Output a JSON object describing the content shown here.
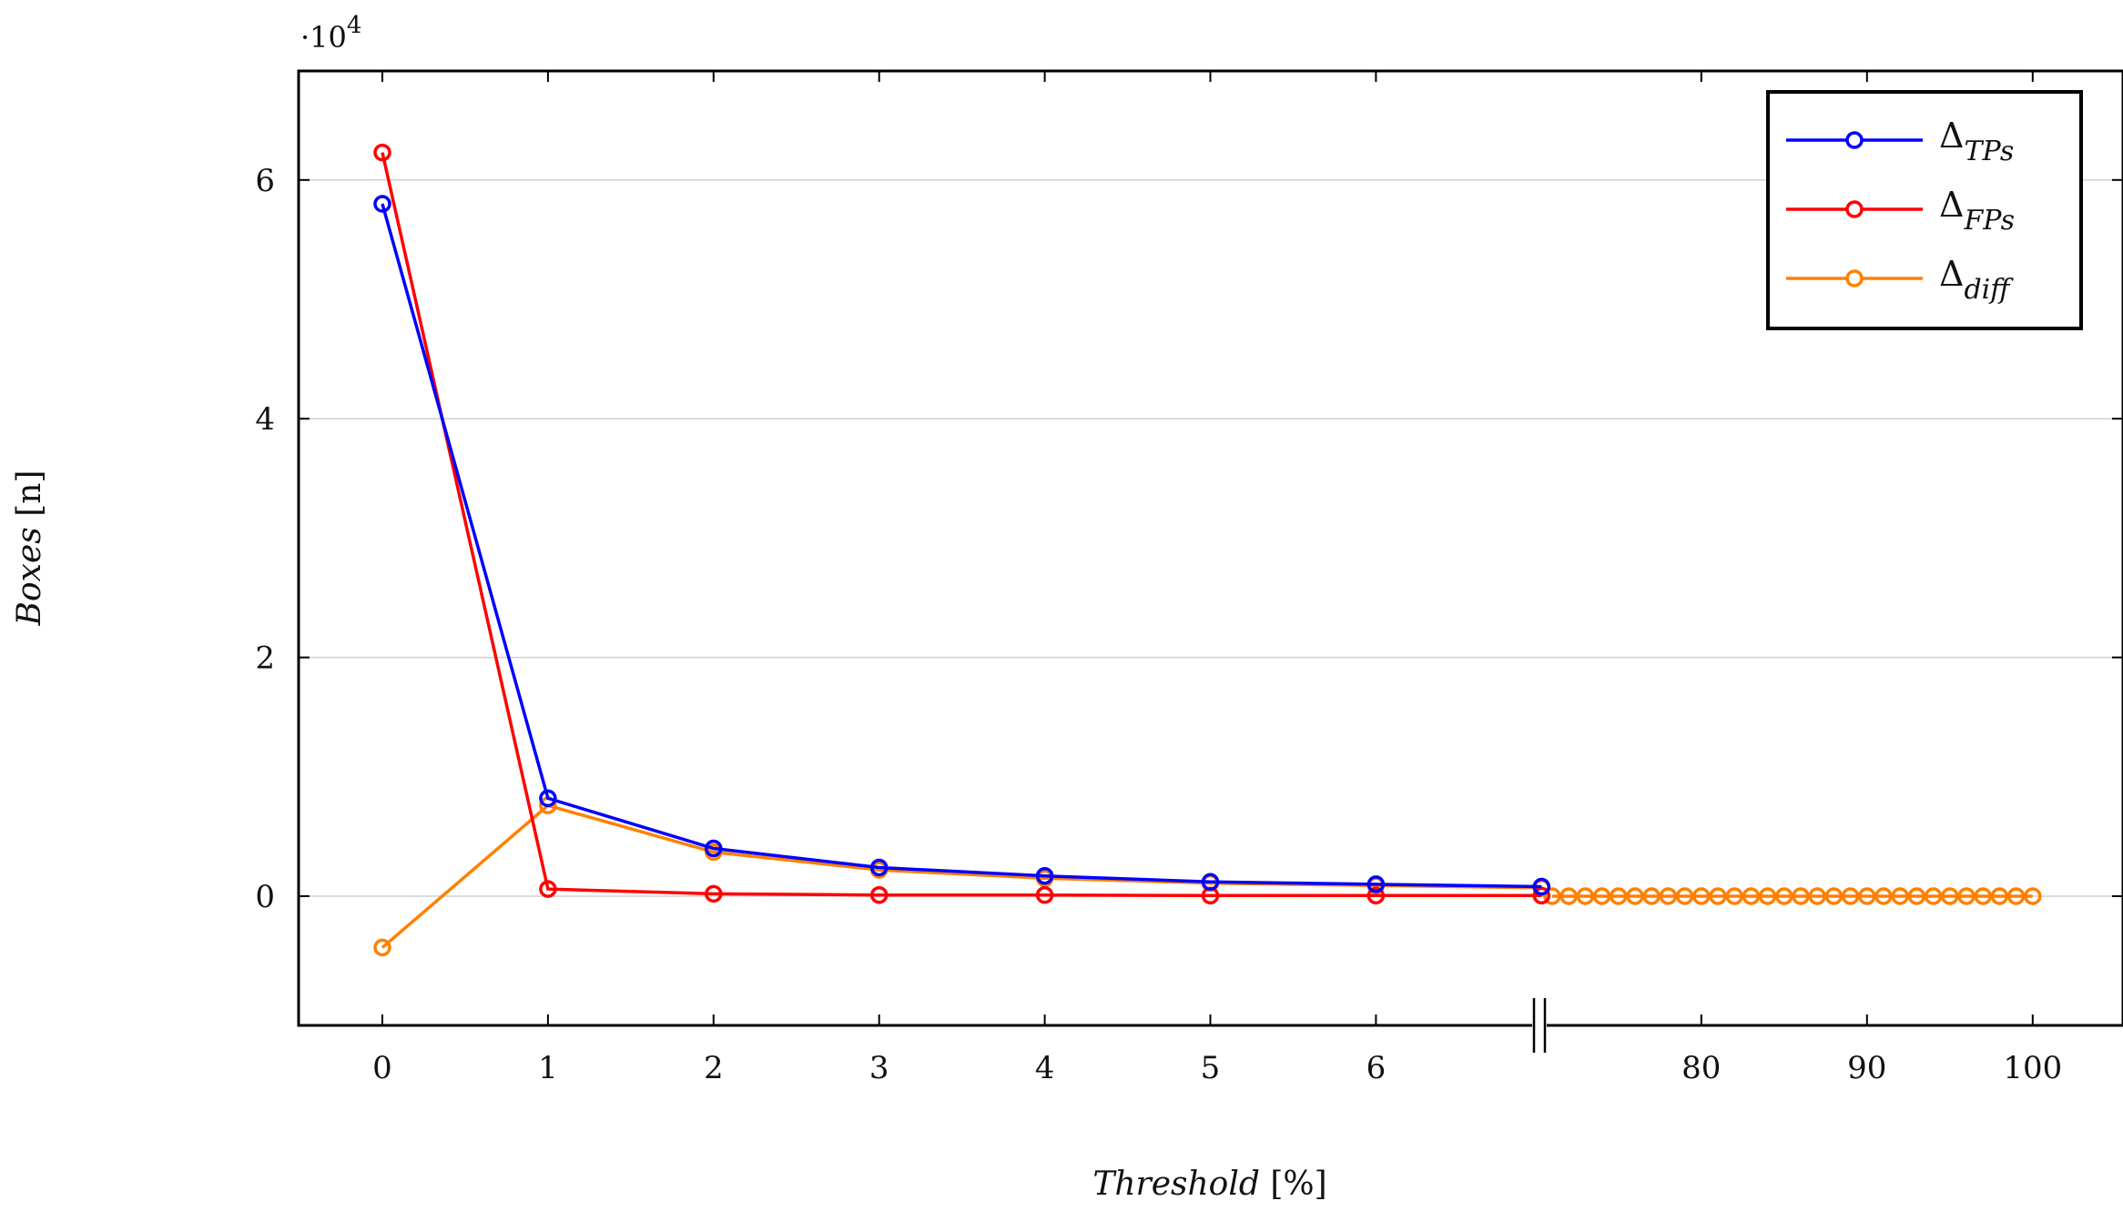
{
  "chart_data": {
    "type": "line",
    "xlabel": "Threshold",
    "xlabel_unit": "[%]",
    "ylabel": "Boxes",
    "ylabel_unit": "[n]",
    "y_multiplier_base": "·10",
    "y_multiplier_exp": "4",
    "ylim": [
      -1.1,
      6.9
    ],
    "y_ticks": [
      0,
      2,
      4,
      6
    ],
    "y_tick_labels": [
      "0",
      "2",
      "4",
      "6"
    ],
    "x_ticks_left": [
      0,
      1,
      2,
      3,
      4,
      5,
      6
    ],
    "x_ticks_right": [
      80,
      90,
      100
    ],
    "x_tick_labels_left": [
      "0",
      "1",
      "2",
      "3",
      "4",
      "5",
      "6"
    ],
    "x_tick_labels_right": [
      "80",
      "90",
      "100"
    ],
    "axis_break": true,
    "grid": "horizontal",
    "legend_position": "top-right",
    "series": [
      {
        "name": "TPs",
        "color": "#0000ff",
        "x": [
          0,
          1,
          2,
          3,
          4,
          5,
          6,
          7
        ],
        "values": [
          5.8,
          0.82,
          0.4,
          0.24,
          0.17,
          0.12,
          0.1,
          0.08
        ]
      },
      {
        "name": "FPs",
        "color": "#ff0000",
        "x": [
          0,
          1,
          2,
          3,
          4,
          5,
          6,
          7
        ],
        "values": [
          6.23,
          0.06,
          0.02,
          0.01,
          0.01,
          0.005,
          0.005,
          0.005
        ]
      },
      {
        "name": "diff",
        "color": "#ff8000",
        "x": [
          0,
          1,
          2,
          3,
          4,
          5,
          6,
          7,
          71,
          72,
          73,
          74,
          75,
          76,
          77,
          78,
          79,
          80,
          81,
          82,
          83,
          84,
          85,
          86,
          87,
          88,
          89,
          90,
          91,
          92,
          93,
          94,
          95,
          96,
          97,
          98,
          99,
          100
        ],
        "values": [
          -0.43,
          0.76,
          0.37,
          0.22,
          0.15,
          0.11,
          0.09,
          0.07,
          0,
          0,
          0,
          0,
          0,
          0,
          0,
          0,
          0,
          0,
          0,
          0,
          0,
          0,
          0,
          0,
          0,
          0,
          0,
          0,
          0,
          0,
          0,
          0,
          0,
          0,
          0,
          0,
          0,
          0
        ]
      }
    ]
  },
  "legend": {
    "symbol": "Δ",
    "items": [
      "TPs",
      "FPs",
      "diff"
    ]
  }
}
